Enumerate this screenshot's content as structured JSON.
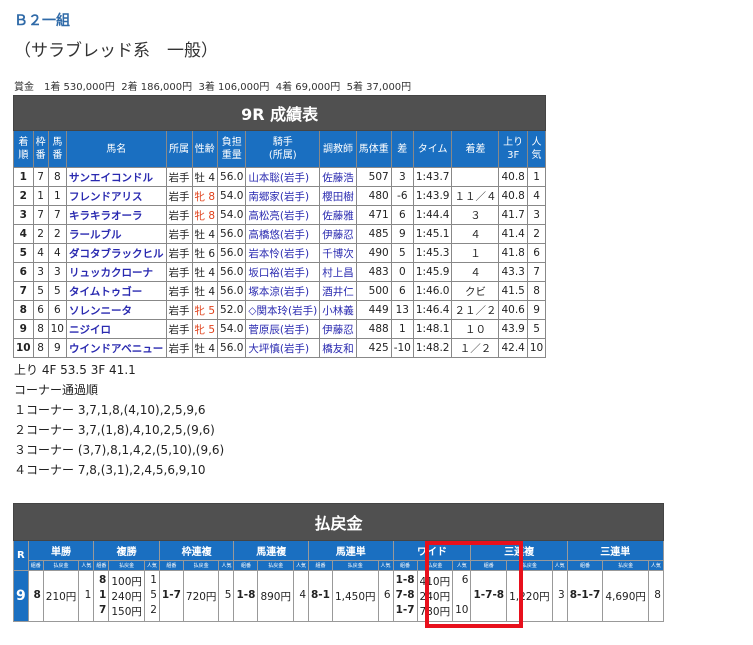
{
  "race": {
    "class": "Ｂ２一組",
    "subtitle": "（サラブレッド系　一般）",
    "prize": "賞金　1着 530,000円  2着 186,000円  3着 106,000円  4着 69,000円  5着 37,000円"
  },
  "results": {
    "title": "9R 成績表",
    "headers": [
      "着\n順",
      "枠\n番",
      "馬\n番",
      "馬名",
      "所属",
      "性齢",
      "負担\n重量",
      "騎手\n(所属)",
      "調教師",
      "馬体重",
      "差",
      "タイム",
      "着差",
      "上り\n3F",
      "人\n気"
    ],
    "rows": [
      [
        "1",
        "7",
        "8",
        "サンエイコンドル",
        "岩手",
        "牡 4",
        "56.0",
        "山本聡(岩手)",
        "佐藤浩",
        "507",
        "3",
        "1:43.7",
        "",
        "40.8",
        "1"
      ],
      [
        "2",
        "1",
        "1",
        "フレンドアリス",
        "岩手",
        "牝 8",
        "54.0",
        "南郷家(岩手)",
        "櫻田樹",
        "480",
        "-6",
        "1:43.9",
        "１１／４",
        "40.8",
        "4"
      ],
      [
        "3",
        "7",
        "7",
        "キラキラオーラ",
        "岩手",
        "牝 8",
        "54.0",
        "高松亮(岩手)",
        "佐藤雅",
        "471",
        "6",
        "1:44.4",
        "３",
        "41.7",
        "3"
      ],
      [
        "4",
        "2",
        "2",
        "ラールブル",
        "岩手",
        "牡 4",
        "56.0",
        "高橋悠(岩手)",
        "伊藤忍",
        "485",
        "9",
        "1:45.1",
        "４",
        "41.4",
        "2"
      ],
      [
        "5",
        "4",
        "4",
        "ダコタブラックヒル",
        "岩手",
        "牡 6",
        "56.0",
        "岩本怜(岩手)",
        "千博次",
        "490",
        "5",
        "1:45.3",
        "１",
        "41.8",
        "6"
      ],
      [
        "6",
        "3",
        "3",
        "リュッカクローナ",
        "岩手",
        "牡 4",
        "56.0",
        "坂口裕(岩手)",
        "村上昌",
        "483",
        "0",
        "1:45.9",
        "４",
        "43.3",
        "7"
      ],
      [
        "7",
        "5",
        "5",
        "タイムトゥゴー",
        "岩手",
        "牡 4",
        "56.0",
        "塚本涼(岩手)",
        "酒井仁",
        "500",
        "6",
        "1:46.0",
        "クビ",
        "41.5",
        "8"
      ],
      [
        "8",
        "6",
        "6",
        "ソレンニータ",
        "岩手",
        "牝 5",
        "52.0",
        "◇関本玲(岩手)",
        "小林義",
        "449",
        "13",
        "1:46.4",
        "２１／２",
        "40.6",
        "9"
      ],
      [
        "9",
        "8",
        "10",
        "ニジイロ",
        "岩手",
        "牝 5",
        "54.0",
        "菅原辰(岩手)",
        "伊藤忍",
        "488",
        "1",
        "1:48.1",
        "１０",
        "43.9",
        "5"
      ],
      [
        "10",
        "8",
        "9",
        "ウインドアベニュー",
        "岩手",
        "牡 4",
        "56.0",
        "大坪慎(岩手)",
        "橋友和",
        "425",
        "-10",
        "1:48.2",
        "１／２",
        "42.4",
        "10"
      ]
    ]
  },
  "final_time": "上り 4F 53.5 3F 41.1",
  "corners": {
    "title": "コーナー通過順",
    "lines": [
      "１コーナー 3,7,1,8,(4,10),2,5,9,6",
      "２コーナー 3,7,(1,8),4,10,2,5,(9,6)",
      "３コーナー (3,7),8,1,4,2,(5,10),(9,6)",
      "４コーナー 7,8,(3,1),2,4,5,6,9,10"
    ]
  },
  "payout": {
    "title": "払戻金",
    "race_label": "R",
    "race_no": "9",
    "sub": [
      "組番",
      "払戻金",
      "人気"
    ],
    "groups": [
      {
        "name": "単勝",
        "rows": [
          [
            "8",
            "210円",
            "1"
          ]
        ]
      },
      {
        "name": "複勝",
        "rows": [
          [
            "8",
            "100円",
            "1"
          ],
          [
            "1",
            "240円",
            "5"
          ],
          [
            "7",
            "150円",
            "2"
          ]
        ]
      },
      {
        "name": "枠連複",
        "rows": [
          [
            "1-7",
            "720円",
            "5"
          ]
        ]
      },
      {
        "name": "馬連複",
        "rows": [
          [
            "1-8",
            "890円",
            "4"
          ]
        ]
      },
      {
        "name": "馬連単",
        "rows": [
          [
            "8-1",
            "1,450円",
            "6"
          ]
        ]
      },
      {
        "name": "ワイド",
        "rows": [
          [
            "1-8",
            "410円",
            "6"
          ],
          [
            "7-8",
            "240円",
            ""
          ],
          [
            "1-7",
            "730円",
            "10"
          ]
        ]
      },
      {
        "name": "三連複",
        "rows": [
          [
            "1-7-8",
            "1,220円",
            "3"
          ]
        ]
      },
      {
        "name": "三連単",
        "rows": [
          [
            "8-1-7",
            "4,690円",
            "8"
          ]
        ]
      }
    ]
  },
  "colors": {
    "header_blue": "#1a6fc1",
    "title_bar": "#505050",
    "highlight": "#e8101c",
    "female": "#e0401a"
  }
}
